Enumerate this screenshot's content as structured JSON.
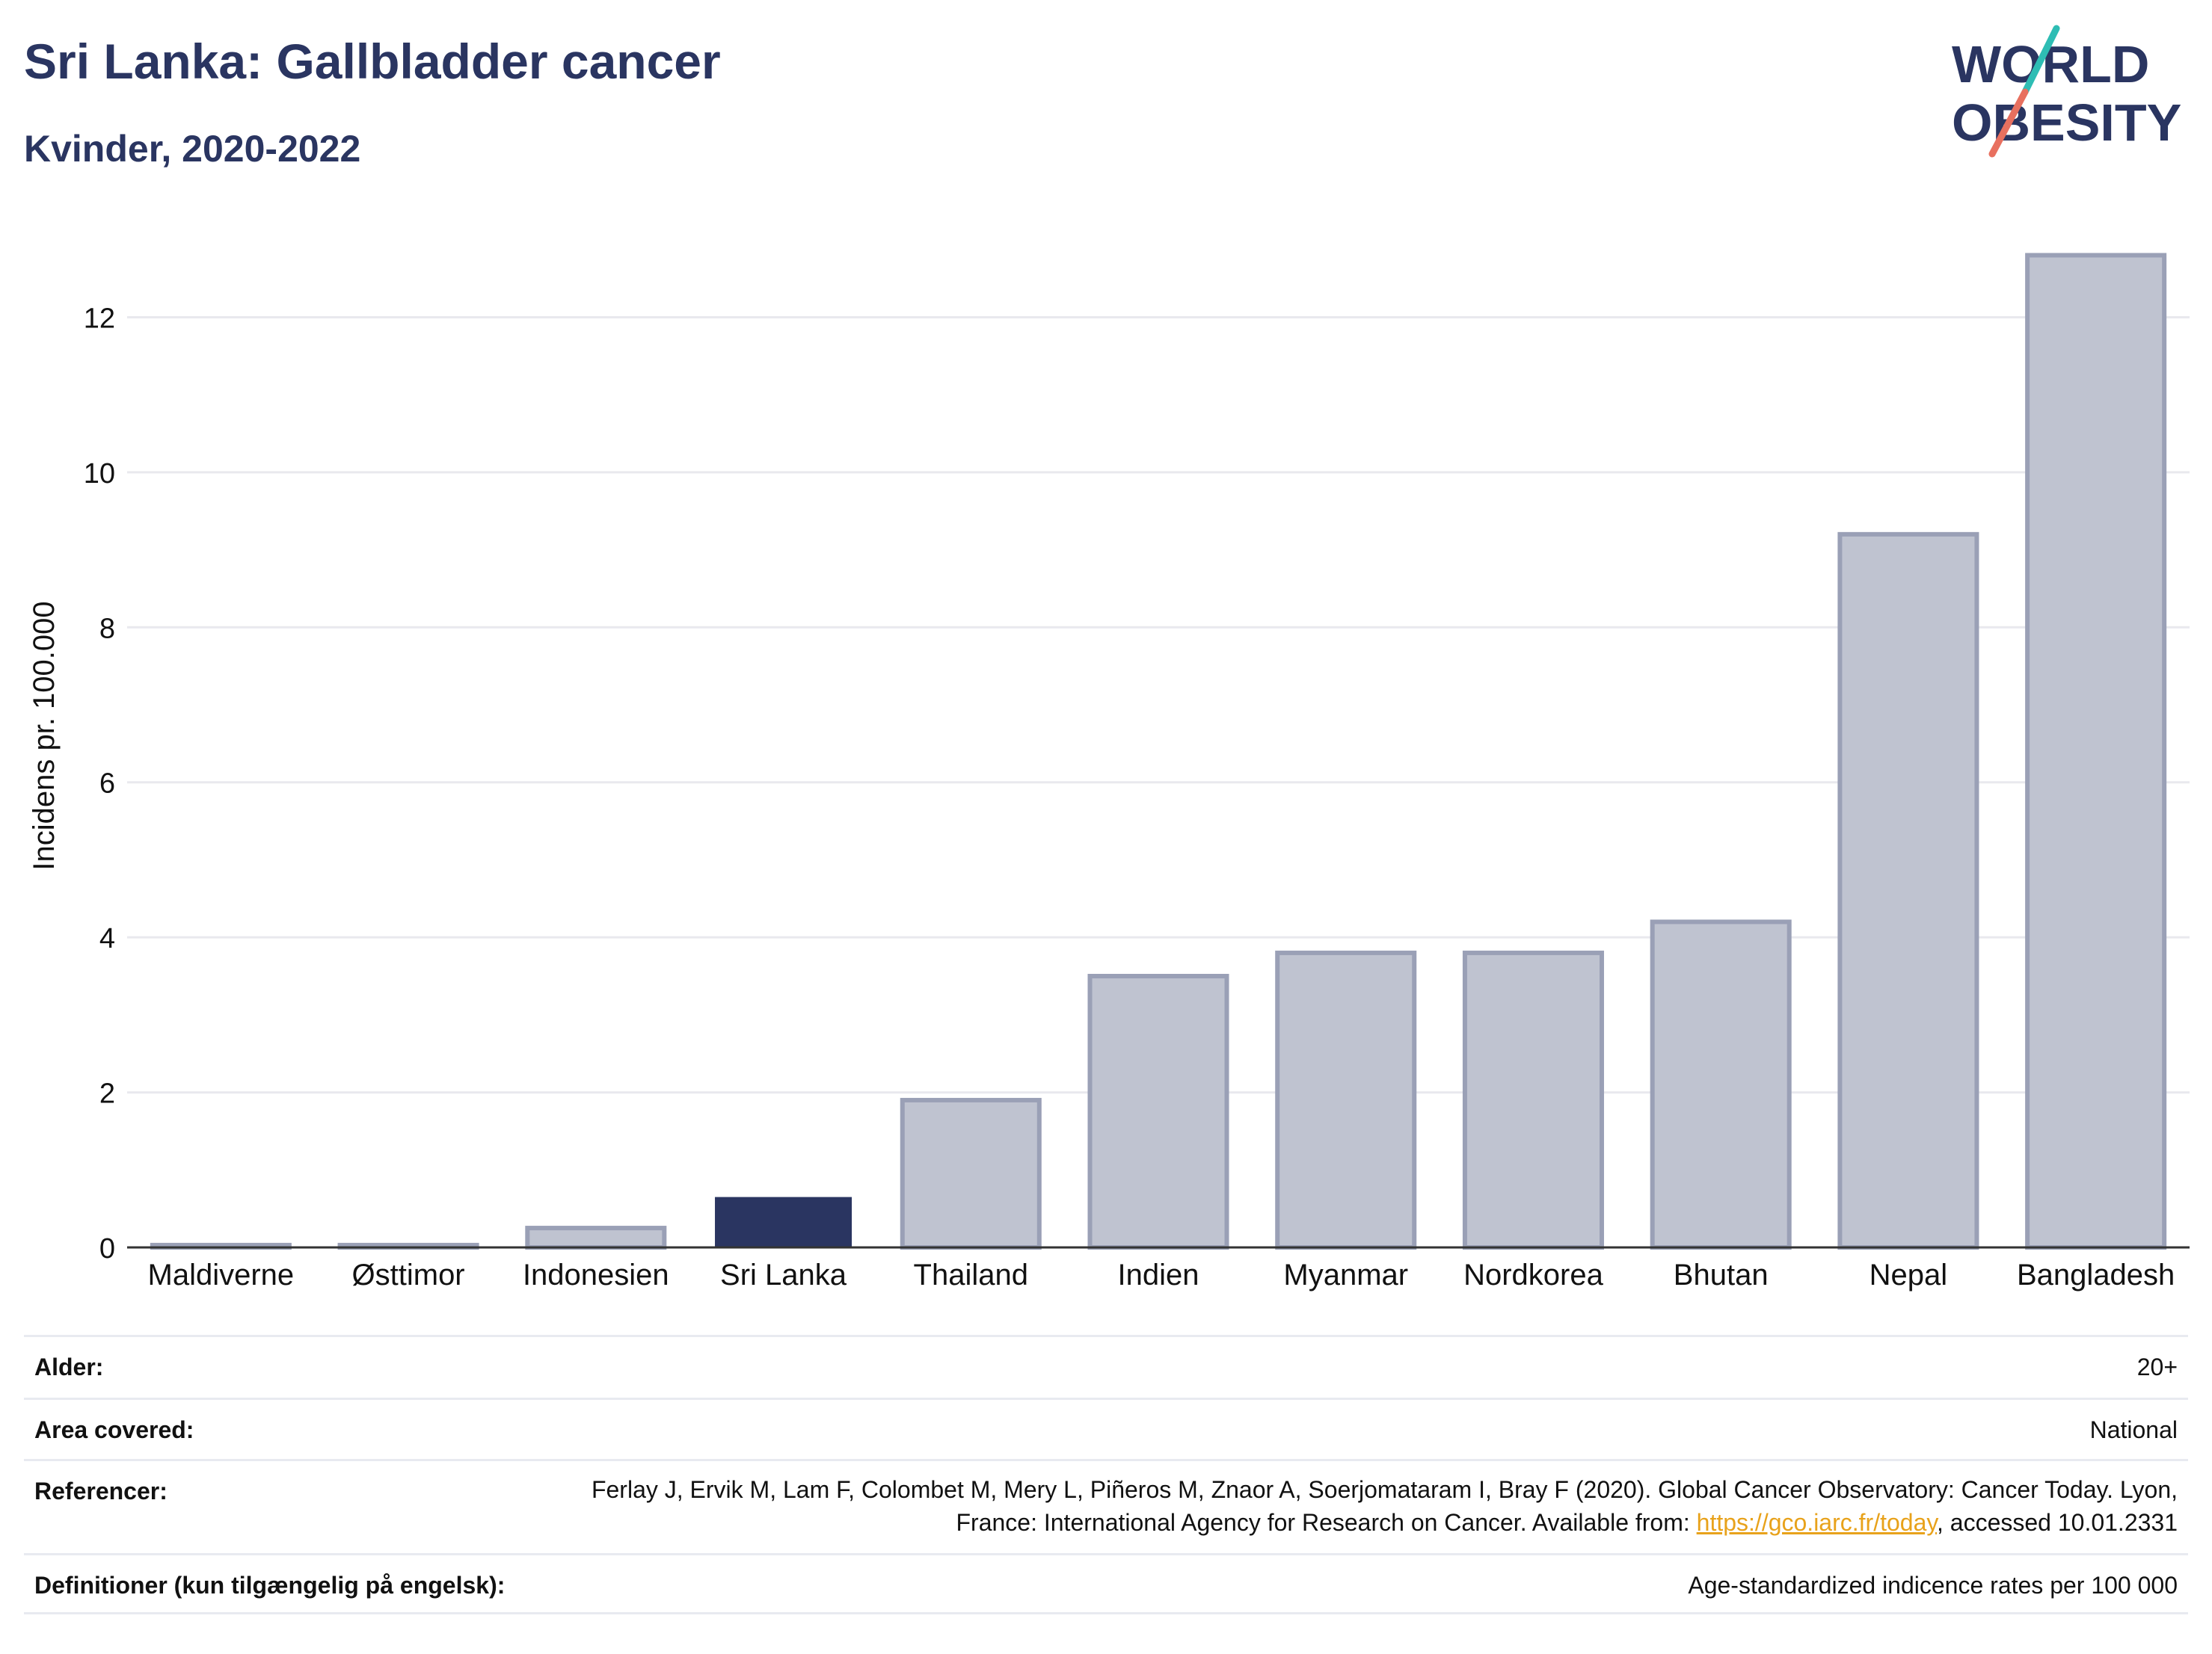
{
  "header": {
    "title": "Sri Lanka: Gallbladder cancer",
    "subtitle": "Kvinder, 2020-2022"
  },
  "logo": {
    "line1": "WORLD",
    "line2": "OBESITY",
    "colors": {
      "text": "#2a3561",
      "slash_top": "#2ebdb4",
      "slash_bottom": "#e8705f"
    }
  },
  "colors": {
    "highlight_bar": "#2a3561",
    "other_bar_fill": "#bfc3d0",
    "other_bar_stroke": "#9aa0b6",
    "grid": "#e9e9ee",
    "axis": "#333333"
  },
  "chart_data": {
    "type": "bar",
    "title": "Sri Lanka: Gallbladder cancer",
    "subtitle": "Kvinder, 2020-2022",
    "xlabel": "",
    "ylabel": "Incidens pr. 100.000",
    "categories": [
      "Maldiverne",
      "Østtimor",
      "Indonesien",
      "Sri Lanka",
      "Thailand",
      "Indien",
      "Myanmar",
      "Nordkorea",
      "Bhutan",
      "Nepal",
      "Bangladesh"
    ],
    "values": [
      0.03,
      0.03,
      0.25,
      0.65,
      1.9,
      3.5,
      3.8,
      3.8,
      4.2,
      9.2,
      12.8
    ],
    "highlight": "Sri Lanka",
    "ylim": [
      0,
      13.2
    ],
    "yticks": [
      "0",
      "2",
      "4",
      "6",
      "8",
      "10",
      "12"
    ],
    "grid": true,
    "legend": "none"
  },
  "meta": {
    "age_label": "Alder:",
    "age_value": "20+",
    "area_label": "Area covered:",
    "area_value": "National",
    "ref_label": "Referencer:",
    "ref_text_1": "Ferlay J, Ervik M, Lam F, Colombet M, Mery L, Piñeros M, Znaor A, Soerjomataram I, Bray F (2020). Global Cancer Observatory: Cancer Today. Lyon, France: International Agency for Research on Cancer. Available from: ",
    "ref_link": "https://gco.iarc.fr/today",
    "ref_text_2": ", accessed 10.01.2331",
    "def_label": "Definitioner (kun tilgængelig på engelsk):",
    "def_value": "Age-standardized indicence rates per 100 000"
  }
}
